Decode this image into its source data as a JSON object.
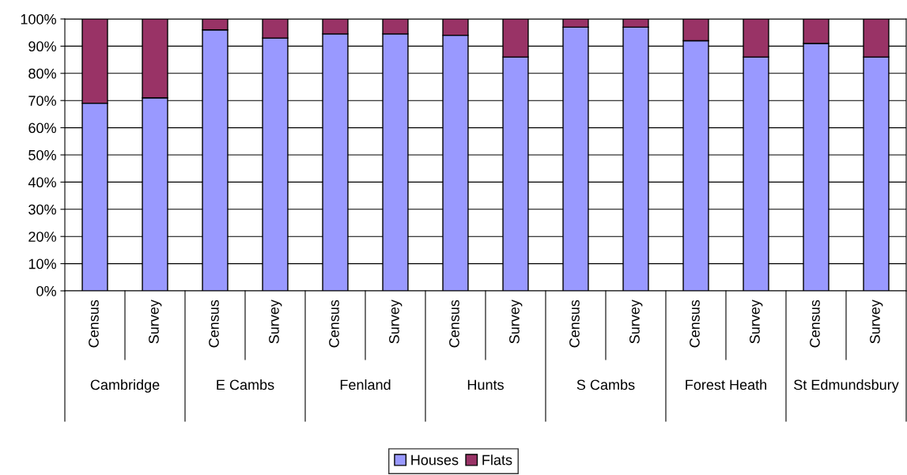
{
  "chart_data": {
    "type": "bar",
    "stacked": true,
    "categories": [
      "Census",
      "Survey",
      "Census",
      "Survey",
      "Census",
      "Survey",
      "Census",
      "Survey",
      "Census",
      "Survey",
      "Census",
      "Survey",
      "Census",
      "Survey"
    ],
    "annotations": [
      "Cambridge",
      "E Cambs",
      "Fenland",
      "Hunts",
      "S Cambs",
      "Forest Heath",
      "St Edmundsbury"
    ],
    "series": [
      {
        "name": "Houses",
        "color": "#9999ff",
        "values": [
          69,
          71,
          96,
          93,
          94.5,
          94.5,
          94,
          86,
          97,
          97,
          92,
          86,
          91,
          86
        ]
      },
      {
        "name": "Flats",
        "color": "#993366",
        "values": [
          31,
          29,
          4,
          7,
          5.5,
          5.5,
          6,
          14,
          3,
          3,
          8,
          14,
          9,
          14
        ]
      }
    ],
    "ylim": [
      0,
      100
    ],
    "yticks": [
      {
        "value": 0,
        "label": "0%"
      },
      {
        "value": 10,
        "label": "10%"
      },
      {
        "value": 20,
        "label": "20%"
      },
      {
        "value": 30,
        "label": "30%"
      },
      {
        "value": 40,
        "label": "40%"
      },
      {
        "value": 50,
        "label": "50%"
      },
      {
        "value": 60,
        "label": "60%"
      },
      {
        "value": 70,
        "label": "70%"
      },
      {
        "value": 80,
        "label": "80%"
      },
      {
        "value": 90,
        "label": "90%"
      },
      {
        "value": 100,
        "label": "100%"
      }
    ],
    "grid": "y",
    "legend": "bottom"
  }
}
